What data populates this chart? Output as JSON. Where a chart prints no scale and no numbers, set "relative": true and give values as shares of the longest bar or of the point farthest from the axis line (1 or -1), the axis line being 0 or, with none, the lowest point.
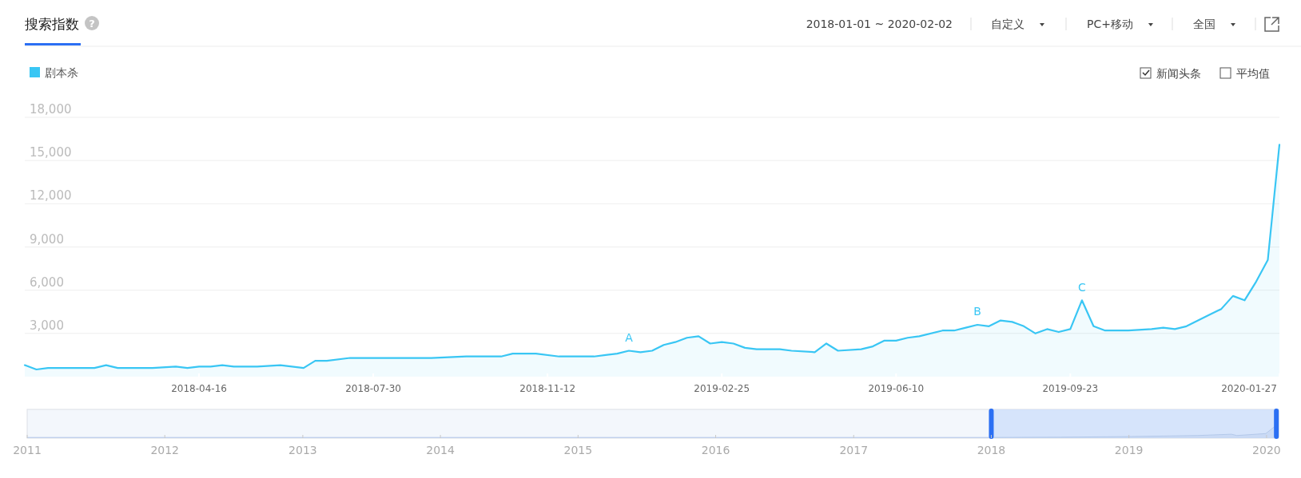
{
  "chart_data": [
    {
      "type": "area",
      "title": "搜索指数",
      "subtitle": "2018-01-01 ~ 2020-02-02",
      "legend": "top left",
      "grid": "y",
      "annotations": [
        "?",
        "自定义",
        "PC+移动",
        "全国",
        "新闻头条",
        "平均值",
        {
          "text": "A",
          "x": "2018-12-31",
          "y": 1755
        },
        {
          "text": "B",
          "x": "2019-07-29",
          "y": 3600
        },
        {
          "text": "C",
          "x": "2019-09-30",
          "y": 5260
        }
      ],
      "x": [
        "2018-01-01",
        "2018-01-08",
        "2018-01-15",
        "2018-01-29",
        "2018-02-12",
        "2018-02-19",
        "2018-02-26",
        "2018-03-19",
        "2018-04-02",
        "2018-04-09",
        "2018-04-16",
        "2018-04-23",
        "2018-04-30",
        "2018-05-07",
        "2018-05-21",
        "2018-06-04",
        "2018-06-11",
        "2018-06-18",
        "2018-06-25",
        "2018-07-02",
        "2018-07-16",
        "2018-08-13",
        "2018-09-03",
        "2018-09-24",
        "2018-10-15",
        "2018-10-22",
        "2018-11-05",
        "2018-11-19",
        "2018-12-10",
        "2018-12-17",
        "2018-12-24",
        "2018-12-31",
        "2019-01-07",
        "2019-01-14",
        "2019-01-21",
        "2019-01-28",
        "2019-02-04",
        "2019-02-11",
        "2019-02-18",
        "2019-02-25",
        "2019-03-04",
        "2019-03-11",
        "2019-03-18",
        "2019-04-01",
        "2019-04-08",
        "2019-04-22",
        "2019-04-29",
        "2019-05-06",
        "2019-05-20",
        "2019-05-27",
        "2019-06-03",
        "2019-06-10",
        "2019-06-17",
        "2019-06-24",
        "2019-07-08",
        "2019-07-15",
        "2019-07-22",
        "2019-07-29",
        "2019-08-05",
        "2019-08-12",
        "2019-08-19",
        "2019-08-26",
        "2019-09-02",
        "2019-09-09",
        "2019-09-16",
        "2019-09-23",
        "2019-09-30",
        "2019-10-07",
        "2019-10-14",
        "2019-10-28",
        "2019-11-11",
        "2019-11-18",
        "2019-11-25",
        "2019-12-02",
        "2019-12-09",
        "2019-12-16",
        "2019-12-23",
        "2019-12-30",
        "2020-01-06",
        "2020-01-13",
        "2020-01-20",
        "2020-01-27"
      ],
      "series": [
        {
          "name": "剧本杀",
          "color": "#39c6f4",
          "values": [
            800,
            500,
            600,
            600,
            600,
            800,
            600,
            600,
            700,
            600,
            700,
            700,
            800,
            700,
            700,
            800,
            700,
            600,
            1100,
            1100,
            1300,
            1300,
            1300,
            1400,
            1400,
            1600,
            1600,
            1400,
            1400,
            1500,
            1600,
            1800,
            1700,
            1800,
            2200,
            2400,
            2700,
            2800,
            2300,
            2400,
            2300,
            2000,
            1900,
            1900,
            1800,
            1700,
            2300,
            1800,
            1900,
            2100,
            2500,
            2500,
            2700,
            2800,
            3200,
            3200,
            3400,
            3600,
            3500,
            3900,
            3800,
            3500,
            3000,
            3300,
            3100,
            3300,
            5300,
            3500,
            3200,
            3200,
            3300,
            3400,
            3300,
            3500,
            3900,
            4300,
            4700,
            5600,
            5300,
            6600,
            8100,
            16100
          ]
        }
      ],
      "xlim": [
        "2018-01-01",
        "2020-01-27"
      ],
      "xticks": [
        "2018-04-16",
        "2018-07-30",
        "2018-11-12",
        "2019-02-25",
        "2019-06-10",
        "2019-09-23",
        "2020-01-27"
      ],
      "ylim": [
        0,
        18000
      ],
      "yticks": [
        {
          "value": 3000,
          "label": "3,000"
        },
        {
          "value": 6000,
          "label": "6,000"
        },
        {
          "value": 9000,
          "label": "9,000"
        },
        {
          "value": 12000,
          "label": "12,000"
        },
        {
          "value": 15000,
          "label": "15,000"
        },
        {
          "value": 18000,
          "label": "18,000"
        }
      ]
    },
    {
      "type": "area",
      "relative": true,
      "x": [
        "2011-01-01",
        "2017-12-25",
        "2018-07-02",
        "2019-01-07",
        "2019-07-01",
        "2019-09-30",
        "2019-10-14",
        "2019-12-30",
        "2020-01-27"
      ],
      "series": [
        {
          "color": "#b4c9ea",
          "values": [
            0.05,
            0.05,
            0.07,
            0.12,
            0.2,
            0.3,
            0.2,
            0.35,
            1
          ]
        }
      ],
      "xlim": [
        "2011-01-01",
        "2020-02-02"
      ],
      "xticks": [
        {
          "value": "2011-01-01",
          "label": "2011"
        },
        {
          "value": "2012-01-01",
          "label": "2012"
        },
        {
          "value": "2013-01-01",
          "label": "2013"
        },
        {
          "value": "2014-01-01",
          "label": "2014"
        },
        {
          "value": "2015-01-01",
          "label": "2015"
        },
        {
          "value": "2016-01-01",
          "label": "2016"
        },
        {
          "value": "2017-01-01",
          "label": "2017"
        },
        {
          "value": "2018-01-01",
          "label": "2018"
        },
        {
          "value": "2019-01-01",
          "label": "2019"
        },
        {
          "value": "2020-01-01",
          "label": "2020"
        }
      ],
      "bands": [
        {
          "axis": "x",
          "from": "2018-01-01",
          "to": "2020-01-27",
          "color": "#c9dbfb"
        }
      ],
      "ref_lines": [
        {
          "axis": "x",
          "value": "2018-01-01",
          "color": "#2b6ff3"
        },
        {
          "axis": "x",
          "value": "2020-01-27",
          "color": "#2b6ff3"
        }
      ]
    }
  ]
}
